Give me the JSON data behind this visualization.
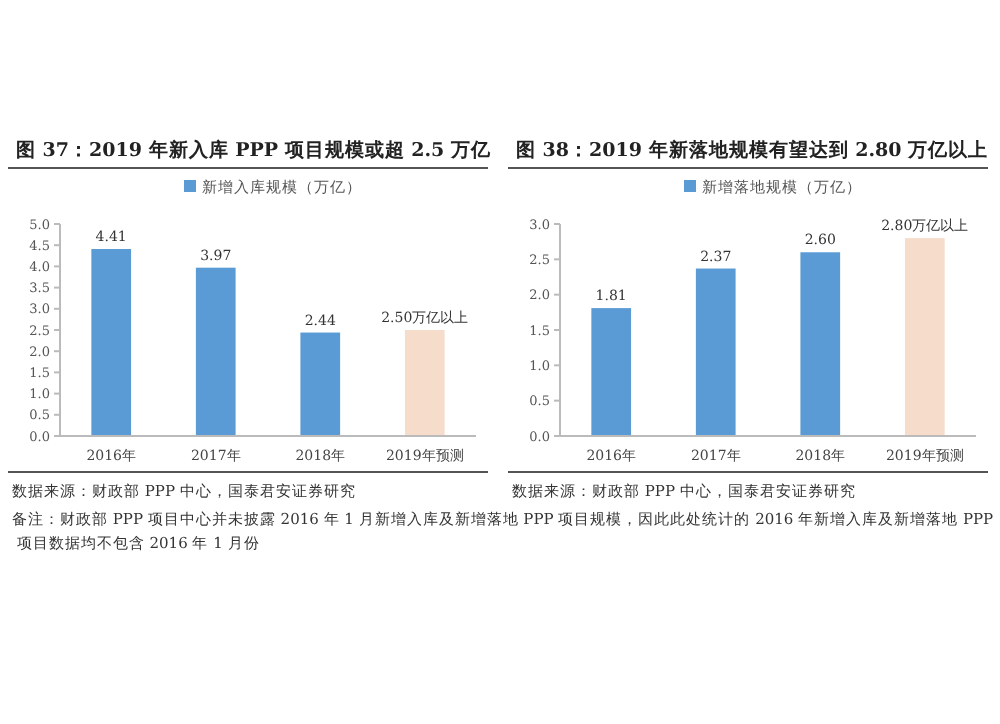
{
  "chart_data": [
    {
      "type": "bar",
      "title": "图 37：2019 年新入库 PPP 项目规模或超 2.5 万亿",
      "categories": [
        "2016年",
        "2017年",
        "2018年",
        "2019年预测"
      ],
      "series": [
        {
          "name": "新增入库规模（万亿）",
          "color": "#5b9bd5",
          "colors": [
            "#5b9bd5",
            "#5b9bd5",
            "#5b9bd5",
            "#f6dccb"
          ],
          "values": [
            4.41,
            3.97,
            2.44,
            2.5
          ],
          "value_labels": [
            "4.41",
            "3.97",
            "2.44",
            "2.50万亿以上"
          ]
        }
      ],
      "ylim": [
        0,
        5
      ],
      "yticks": [
        {
          "value": 0,
          "label": "0.0"
        },
        {
          "value": 0.5,
          "label": "0.5"
        },
        {
          "value": 1,
          "label": "1.0"
        },
        {
          "value": 1.5,
          "label": "1.5"
        },
        {
          "value": 2,
          "label": "2.0"
        },
        {
          "value": 2.5,
          "label": "2.5"
        },
        {
          "value": 3,
          "label": "3.0"
        },
        {
          "value": 3.5,
          "label": "3.5"
        },
        {
          "value": 4,
          "label": "4.0"
        },
        {
          "value": 4.5,
          "label": "4.5"
        },
        {
          "value": 5,
          "label": "5.0"
        }
      ],
      "legend": "top",
      "grid": false,
      "annotations": [
        "数据来源：财政部 PPP 中心，国泰君安证券研究",
        "备注：财政部 PPP 项目中心并未披露 2016 年 1 月新增入库及新增落地 PPP 项目规模，因此此处统计的 2016 年新增入库及新增落地 PPP 项目数据均不包含 2016 年 1 月份"
      ]
    },
    {
      "type": "bar",
      "title": "图 38：2019 年新落地规模有望达到 2.80 万亿以上",
      "categories": [
        "2016年",
        "2017年",
        "2018年",
        "2019年预测"
      ],
      "series": [
        {
          "name": "新增落地规模（万亿）",
          "color": "#5b9bd5",
          "colors": [
            "#5b9bd5",
            "#5b9bd5",
            "#5b9bd5",
            "#f6dccb"
          ],
          "values": [
            1.81,
            2.37,
            2.6,
            2.8
          ],
          "value_labels": [
            "1.81",
            "2.37",
            "2.60",
            "2.80万亿以上"
          ]
        }
      ],
      "ylim": [
        0,
        3
      ],
      "yticks": [
        {
          "value": 0,
          "label": "0.0"
        },
        {
          "value": 0.5,
          "label": "0.5"
        },
        {
          "value": 1,
          "label": "1.0"
        },
        {
          "value": 1.5,
          "label": "1.5"
        },
        {
          "value": 2,
          "label": "2.0"
        },
        {
          "value": 2.5,
          "label": "2.5"
        },
        {
          "value": 3,
          "label": "3.0"
        }
      ],
      "legend": "top",
      "grid": false,
      "annotations": [
        "数据来源：财政部 PPP 中心，国泰君安证券研究"
      ]
    }
  ]
}
